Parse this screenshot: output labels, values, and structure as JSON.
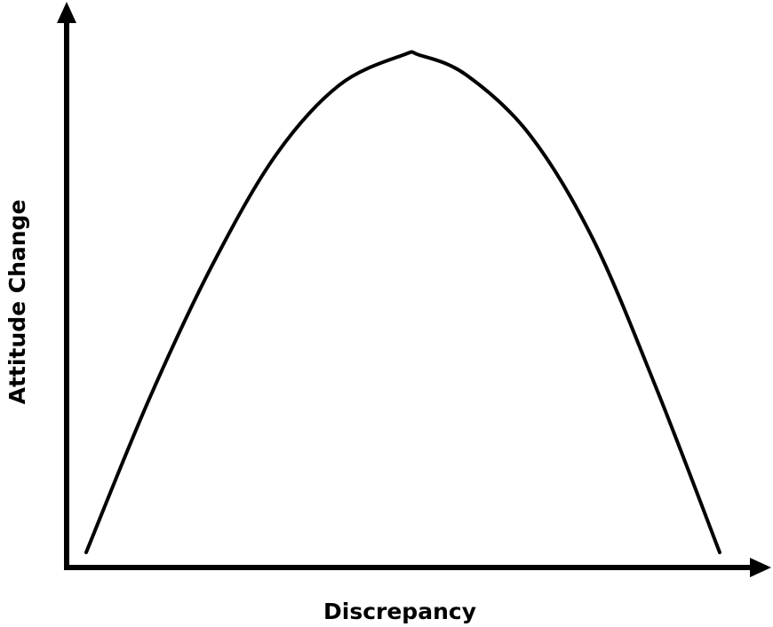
{
  "chart_data": {
    "type": "line",
    "title": "",
    "xlabel": "Discrepancy",
    "ylabel": "Attitude Change",
    "xticks": [],
    "yticks": [],
    "grid": false,
    "legend": "none",
    "series": [
      {
        "x": [
          0.0,
          0.1,
          0.2,
          0.3,
          0.4,
          0.5,
          0.526,
          0.6,
          0.7,
          0.8,
          0.9,
          1.0
        ],
        "y": [
          0.0,
          0.31,
          0.58,
          0.8,
          0.94,
          1.0,
          1.0,
          0.96,
          0.84,
          0.63,
          0.33,
          0.0
        ]
      }
    ]
  },
  "style": {
    "line_color": "#000000",
    "background": "#ffffff"
  }
}
